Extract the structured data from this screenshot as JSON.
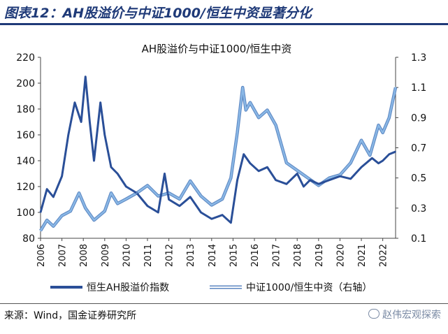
{
  "figure_title": "图表12：AH股溢价与中证1000/恒生中资显著分化",
  "source_text": "来源：Wind，国金证券研究所",
  "watermark_text": "赵伟宏观探索",
  "colors": {
    "heading": "#1f3a78",
    "series_ah": "#2a4f98",
    "series_ratio": "#8ab8e6"
  },
  "chart_data": {
    "type": "line",
    "title": "AH股溢价与中证1000/恒生中资",
    "x_tick_labels": [
      "2006",
      "2007",
      "2008",
      "2009",
      "2010",
      "2011",
      "2012",
      "2013",
      "2014",
      "2015",
      "2016",
      "2017",
      "2018",
      "2019",
      "2020",
      "2021",
      "2022"
    ],
    "xlim": [
      2006,
      2022.6
    ],
    "y_left": {
      "ticks": [
        "80",
        "100",
        "120",
        "140",
        "160",
        "180",
        "200",
        "220"
      ],
      "ylim": [
        80,
        220
      ]
    },
    "y_right": {
      "ticks": [
        "0.1",
        "0.3",
        "0.5",
        "0.7",
        "0.9",
        "1.1",
        "1.3"
      ],
      "ylim": [
        0.1,
        1.3
      ]
    },
    "series": [
      {
        "name": "恒生AH股溢价指数",
        "axis": "left",
        "x": [
          2006.0,
          2006.3,
          2006.6,
          2007.0,
          2007.3,
          2007.6,
          2007.9,
          2008.1,
          2008.3,
          2008.5,
          2008.8,
          2009.0,
          2009.3,
          2009.6,
          2010.0,
          2010.5,
          2011.0,
          2011.5,
          2011.8,
          2012.0,
          2012.5,
          2013.0,
          2013.5,
          2014.0,
          2014.5,
          2014.9,
          2015.2,
          2015.5,
          2015.8,
          2016.2,
          2016.6,
          2017.0,
          2017.5,
          2018.0,
          2018.3,
          2018.6,
          2019.0,
          2019.5,
          2020.0,
          2020.5,
          2021.0,
          2021.5,
          2021.8,
          2022.0,
          2022.3,
          2022.6
        ],
        "values": [
          100,
          118,
          112,
          128,
          160,
          185,
          170,
          205,
          170,
          140,
          185,
          160,
          135,
          130,
          120,
          115,
          105,
          100,
          130,
          110,
          105,
          112,
          100,
          95,
          98,
          92,
          125,
          145,
          138,
          132,
          135,
          125,
          122,
          130,
          120,
          125,
          122,
          125,
          128,
          126,
          135,
          142,
          138,
          140,
          145,
          147
        ]
      },
      {
        "name": "中证1000/恒生中资（右轴）",
        "axis": "right",
        "x": [
          2006.0,
          2006.3,
          2006.6,
          2007.0,
          2007.4,
          2007.8,
          2008.1,
          2008.5,
          2009.0,
          2009.3,
          2009.6,
          2010.0,
          2010.5,
          2011.0,
          2011.5,
          2012.0,
          2012.5,
          2013.0,
          2013.5,
          2014.0,
          2014.5,
          2014.9,
          2015.2,
          2015.45,
          2015.6,
          2015.8,
          2016.2,
          2016.6,
          2017.0,
          2017.5,
          2018.0,
          2018.5,
          2019.0,
          2019.5,
          2020.0,
          2020.5,
          2021.0,
          2021.4,
          2021.8,
          2022.0,
          2022.3,
          2022.6
        ],
        "values": [
          0.15,
          0.22,
          0.18,
          0.25,
          0.28,
          0.4,
          0.3,
          0.22,
          0.28,
          0.4,
          0.33,
          0.36,
          0.4,
          0.45,
          0.38,
          0.4,
          0.36,
          0.48,
          0.38,
          0.32,
          0.36,
          0.5,
          0.8,
          1.1,
          0.95,
          1.0,
          0.9,
          0.95,
          0.85,
          0.6,
          0.55,
          0.5,
          0.45,
          0.5,
          0.52,
          0.6,
          0.75,
          0.65,
          0.85,
          0.8,
          0.9,
          1.1
        ]
      }
    ],
    "legend": [
      "恒生AH股溢价指数",
      "中证1000/恒生中资（右轴）"
    ],
    "legend_position": "bottom"
  }
}
